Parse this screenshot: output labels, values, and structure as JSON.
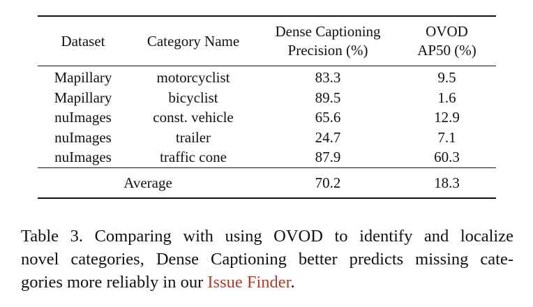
{
  "table": {
    "headers": {
      "dataset": "Dataset",
      "category": "Category Name",
      "dense_line1": "Dense Captioning",
      "dense_line2": "Precision (%)",
      "ovod_line1": "OVOD",
      "ovod_line2": "AP50 (%)"
    },
    "rows": [
      {
        "dataset": "Mapillary",
        "category": "motorcyclist",
        "dense": "83.3",
        "ovod": "9.5"
      },
      {
        "dataset": "Mapillary",
        "category": "bicyclist",
        "dense": "89.5",
        "ovod": "1.6"
      },
      {
        "dataset": "nuImages",
        "category": "const. vehicle",
        "dense": "65.6",
        "ovod": "12.9"
      },
      {
        "dataset": "nuImages",
        "category": "trailer",
        "dense": "24.7",
        "ovod": "7.1"
      },
      {
        "dataset": "nuImages",
        "category": "traffic cone",
        "dense": "87.9",
        "ovod": "60.3"
      }
    ],
    "average": {
      "label": "Average",
      "dense": "70.2",
      "ovod": "18.3"
    }
  },
  "caption": {
    "line1": "Table 3.  Comparing with using OVOD to identify and localize",
    "line2": "novel categories, Dense Captioning better predicts missing cate-",
    "line3_pre": "gories more reliably in our ",
    "line3_link": "Issue Finder",
    "line3_post": "."
  },
  "colors": {
    "link": "#b03a2e",
    "text": "#111111"
  }
}
